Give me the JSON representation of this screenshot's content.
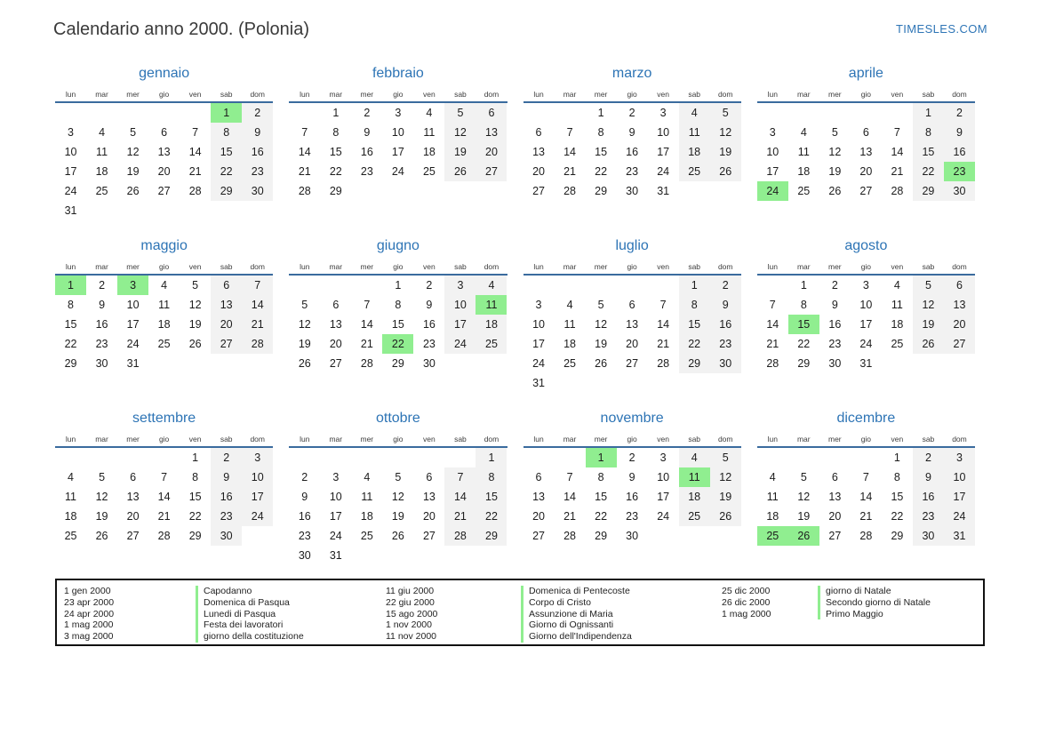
{
  "page": {
    "title": "Calendario anno 2000. (Polonia)",
    "brand": "TIMESLES.COM"
  },
  "calendar": {
    "day_headers": [
      "lun",
      "mar",
      "mer",
      "gio",
      "ven",
      "sab",
      "dom"
    ],
    "colors": {
      "accent_blue": "#2e75b6",
      "header_line_blue": "#3a6b9e",
      "weekend_bg": "#f2f2f2",
      "holiday_green": "#90ee90"
    },
    "months": [
      {
        "name": "gennaio",
        "highlights": [
          1
        ],
        "weeks": [
          [
            "",
            "",
            "",
            "",
            "",
            "1",
            "2"
          ],
          [
            "3",
            "4",
            "5",
            "6",
            "7",
            "8",
            "9"
          ],
          [
            "10",
            "11",
            "12",
            "13",
            "14",
            "15",
            "16"
          ],
          [
            "17",
            "18",
            "19",
            "20",
            "21",
            "22",
            "23"
          ],
          [
            "24",
            "25",
            "26",
            "27",
            "28",
            "29",
            "30"
          ],
          [
            "31",
            "",
            "",
            "",
            "",
            "",
            ""
          ]
        ]
      },
      {
        "name": "febbraio",
        "highlights": [],
        "weeks": [
          [
            "",
            "1",
            "2",
            "3",
            "4",
            "5",
            "6"
          ],
          [
            "7",
            "8",
            "9",
            "10",
            "11",
            "12",
            "13"
          ],
          [
            "14",
            "15",
            "16",
            "17",
            "18",
            "19",
            "20"
          ],
          [
            "21",
            "22",
            "23",
            "24",
            "25",
            "26",
            "27"
          ],
          [
            "28",
            "29",
            "",
            "",
            "",
            "",
            ""
          ]
        ]
      },
      {
        "name": "marzo",
        "highlights": [],
        "weeks": [
          [
            "",
            "",
            "1",
            "2",
            "3",
            "4",
            "5"
          ],
          [
            "6",
            "7",
            "8",
            "9",
            "10",
            "11",
            "12"
          ],
          [
            "13",
            "14",
            "15",
            "16",
            "17",
            "18",
            "19"
          ],
          [
            "20",
            "21",
            "22",
            "23",
            "24",
            "25",
            "26"
          ],
          [
            "27",
            "28",
            "29",
            "30",
            "31",
            "",
            ""
          ]
        ]
      },
      {
        "name": "aprile",
        "highlights": [
          23,
          24
        ],
        "weeks": [
          [
            "",
            "",
            "",
            "",
            "",
            "1",
            "2"
          ],
          [
            "3",
            "4",
            "5",
            "6",
            "7",
            "8",
            "9"
          ],
          [
            "10",
            "11",
            "12",
            "13",
            "14",
            "15",
            "16"
          ],
          [
            "17",
            "18",
            "19",
            "20",
            "21",
            "22",
            "23"
          ],
          [
            "24",
            "25",
            "26",
            "27",
            "28",
            "29",
            "30"
          ]
        ]
      },
      {
        "name": "maggio",
        "highlights": [
          1,
          3
        ],
        "weeks": [
          [
            "1",
            "2",
            "3",
            "4",
            "5",
            "6",
            "7"
          ],
          [
            "8",
            "9",
            "10",
            "11",
            "12",
            "13",
            "14"
          ],
          [
            "15",
            "16",
            "17",
            "18",
            "19",
            "20",
            "21"
          ],
          [
            "22",
            "23",
            "24",
            "25",
            "26",
            "27",
            "28"
          ],
          [
            "29",
            "30",
            "31",
            "",
            "",
            "",
            ""
          ]
        ]
      },
      {
        "name": "giugno",
        "highlights": [
          11,
          22
        ],
        "weeks": [
          [
            "",
            "",
            "",
            "1",
            "2",
            "3",
            "4"
          ],
          [
            "5",
            "6",
            "7",
            "8",
            "9",
            "10",
            "11"
          ],
          [
            "12",
            "13",
            "14",
            "15",
            "16",
            "17",
            "18"
          ],
          [
            "19",
            "20",
            "21",
            "22",
            "23",
            "24",
            "25"
          ],
          [
            "26",
            "27",
            "28",
            "29",
            "30",
            "",
            ""
          ]
        ]
      },
      {
        "name": "luglio",
        "highlights": [],
        "weeks": [
          [
            "",
            "",
            "",
            "",
            "",
            "1",
            "2"
          ],
          [
            "3",
            "4",
            "5",
            "6",
            "7",
            "8",
            "9"
          ],
          [
            "10",
            "11",
            "12",
            "13",
            "14",
            "15",
            "16"
          ],
          [
            "17",
            "18",
            "19",
            "20",
            "21",
            "22",
            "23"
          ],
          [
            "24",
            "25",
            "26",
            "27",
            "28",
            "29",
            "30"
          ],
          [
            "31",
            "",
            "",
            "",
            "",
            "",
            ""
          ]
        ]
      },
      {
        "name": "agosto",
        "highlights": [
          15
        ],
        "weeks": [
          [
            "",
            "1",
            "2",
            "3",
            "4",
            "5",
            "6"
          ],
          [
            "7",
            "8",
            "9",
            "10",
            "11",
            "12",
            "13"
          ],
          [
            "14",
            "15",
            "16",
            "17",
            "18",
            "19",
            "20"
          ],
          [
            "21",
            "22",
            "23",
            "24",
            "25",
            "26",
            "27"
          ],
          [
            "28",
            "29",
            "30",
            "31",
            "",
            "",
            ""
          ]
        ]
      },
      {
        "name": "settembre",
        "highlights": [],
        "weeks": [
          [
            "",
            "",
            "",
            "",
            "1",
            "2",
            "3"
          ],
          [
            "4",
            "5",
            "6",
            "7",
            "8",
            "9",
            "10"
          ],
          [
            "11",
            "12",
            "13",
            "14",
            "15",
            "16",
            "17"
          ],
          [
            "18",
            "19",
            "20",
            "21",
            "22",
            "23",
            "24"
          ],
          [
            "25",
            "26",
            "27",
            "28",
            "29",
            "30",
            ""
          ]
        ]
      },
      {
        "name": "ottobre",
        "highlights": [],
        "weeks": [
          [
            "",
            "",
            "",
            "",
            "",
            "",
            "1"
          ],
          [
            "2",
            "3",
            "4",
            "5",
            "6",
            "7",
            "8"
          ],
          [
            "9",
            "10",
            "11",
            "12",
            "13",
            "14",
            "15"
          ],
          [
            "16",
            "17",
            "18",
            "19",
            "20",
            "21",
            "22"
          ],
          [
            "23",
            "24",
            "25",
            "26",
            "27",
            "28",
            "29"
          ],
          [
            "30",
            "31",
            "",
            "",
            "",
            "",
            ""
          ]
        ]
      },
      {
        "name": "novembre",
        "highlights": [
          1,
          11
        ],
        "weeks": [
          [
            "",
            "",
            "1",
            "2",
            "3",
            "4",
            "5"
          ],
          [
            "6",
            "7",
            "8",
            "9",
            "10",
            "11",
            "12"
          ],
          [
            "13",
            "14",
            "15",
            "16",
            "17",
            "18",
            "19"
          ],
          [
            "20",
            "21",
            "22",
            "23",
            "24",
            "25",
            "26"
          ],
          [
            "27",
            "28",
            "29",
            "30",
            "",
            "",
            ""
          ]
        ]
      },
      {
        "name": "dicembre",
        "highlights": [
          25,
          26
        ],
        "weeks": [
          [
            "",
            "",
            "",
            "",
            "1",
            "2",
            "3"
          ],
          [
            "4",
            "5",
            "6",
            "7",
            "8",
            "9",
            "10"
          ],
          [
            "11",
            "12",
            "13",
            "14",
            "15",
            "16",
            "17"
          ],
          [
            "18",
            "19",
            "20",
            "21",
            "22",
            "23",
            "24"
          ],
          [
            "25",
            "26",
            "27",
            "28",
            "29",
            "30",
            "31"
          ]
        ]
      }
    ]
  },
  "legend": {
    "groups": [
      {
        "items": [
          {
            "date": "1 gen 2000",
            "name": "Capodanno"
          },
          {
            "date": "23 apr 2000",
            "name": "Domenica di Pasqua"
          },
          {
            "date": "24 apr 2000",
            "name": "Lunedi di Pasqua"
          },
          {
            "date": "1 mag 2000",
            "name": "Festa dei lavoratori"
          },
          {
            "date": "3 mag 2000",
            "name": "giorno della costituzione"
          }
        ]
      },
      {
        "items": [
          {
            "date": "11 giu 2000",
            "name": "Domenica di Pentecoste"
          },
          {
            "date": "22 giu 2000",
            "name": "Corpo di Cristo"
          },
          {
            "date": "15 ago 2000",
            "name": "Assunzione di Maria"
          },
          {
            "date": "1 nov 2000",
            "name": "Giorno di Ognissanti"
          },
          {
            "date": "11 nov 2000",
            "name": "Giorno dell'Indipendenza"
          }
        ]
      },
      {
        "items": [
          {
            "date": "25 dic 2000",
            "name": "giorno di Natale"
          },
          {
            "date": "26 dic 2000",
            "name": "Secondo giorno di Natale"
          },
          {
            "date": "1 mag 2000",
            "name": "Primo Maggio"
          }
        ]
      }
    ]
  }
}
